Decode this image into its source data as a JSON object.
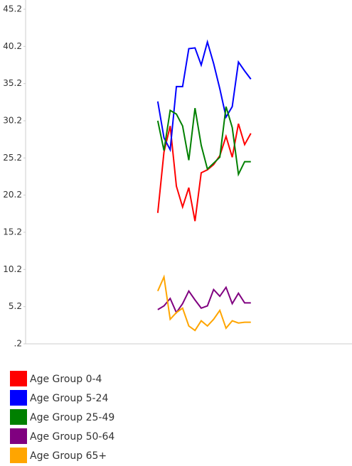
{
  "chart_data": {
    "type": "line",
    "x": [
      0,
      1,
      2,
      3,
      4,
      5,
      6,
      7,
      8,
      9,
      10,
      11,
      12,
      13,
      14,
      15
    ],
    "xlim": [
      -21.3,
      31.3
    ],
    "ylim": [
      0.2,
      45.2
    ],
    "yticks": [
      {
        "value": 0.2,
        "label": ".2"
      },
      5.2,
      10.2,
      15.2,
      20.2,
      25.2,
      30.2,
      35.2,
      40.2,
      45.2
    ],
    "legend": "bottom",
    "series": [
      {
        "name": "Age Group 0-4",
        "color": "#ff0000",
        "values": [
          17.8,
          26,
          29.5,
          21.4,
          18.6,
          21.2,
          16.7,
          23.2,
          23.6,
          24.3,
          25.5,
          28.1,
          25.3,
          29.8,
          27,
          28.5
        ]
      },
      {
        "name": "Age Group 5-24",
        "color": "#0000ff",
        "values": [
          32.8,
          27.9,
          26.3,
          34.8,
          34.8,
          39.9,
          40,
          37.7,
          40.8,
          37.9,
          34.5,
          30.7,
          32.1,
          38.1,
          36.9,
          35.8
        ]
      },
      {
        "name": "Age Group 25-49",
        "color": "#008000",
        "values": [
          30.2,
          26.2,
          31.6,
          31.1,
          29.5,
          24.9,
          31.9,
          26.9,
          23.7,
          24.5,
          25.3,
          32.1,
          29.3,
          23,
          24.7,
          24.7
        ]
      },
      {
        "name": "Age Group 50-64",
        "color": "#800080",
        "values": [
          4.8,
          5.3,
          6.3,
          4.4,
          5.6,
          7.3,
          6.1,
          5,
          5.3,
          7.5,
          6.6,
          7.8,
          5.6,
          7,
          5.7,
          5.7
        ]
      },
      {
        "name": "Age Group 65+",
        "color": "#ffa500",
        "values": [
          7.3,
          9.2,
          3.5,
          4.4,
          5,
          2.6,
          2,
          3.3,
          2.6,
          3.5,
          4.7,
          2.3,
          3.3,
          3,
          3.1,
          3.1
        ]
      }
    ]
  }
}
